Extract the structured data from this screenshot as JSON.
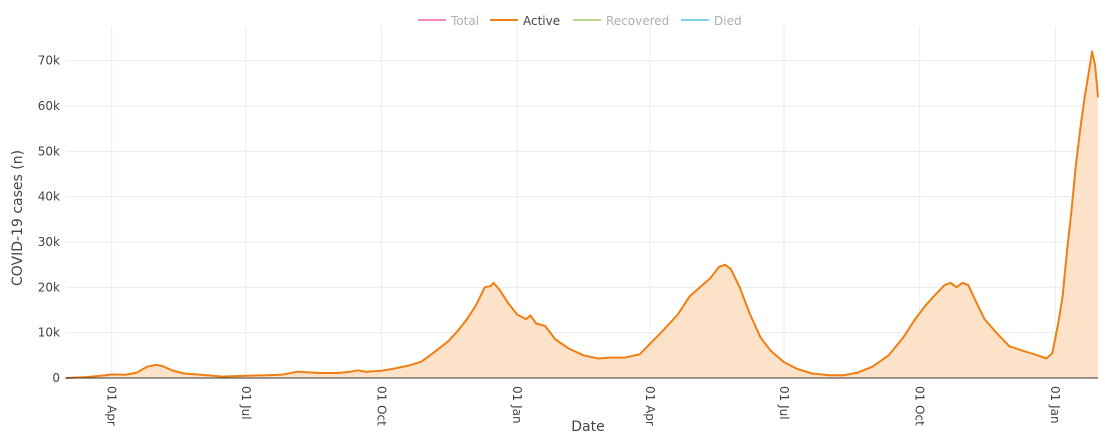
{
  "chart_data": {
    "type": "area",
    "xlabel": "Date",
    "ylabel": "COVID-19 cases (n)",
    "xlim": [
      "2020-03-01",
      "2022-01-30"
    ],
    "ylim": [
      0,
      75000
    ],
    "y_ticks": [
      {
        "value": 0,
        "label": "0"
      },
      {
        "value": 10000,
        "label": "10k"
      },
      {
        "value": 20000,
        "label": "20k"
      },
      {
        "value": 30000,
        "label": "30k"
      },
      {
        "value": 40000,
        "label": "40k"
      },
      {
        "value": 50000,
        "label": "50k"
      },
      {
        "value": 60000,
        "label": "60k"
      },
      {
        "value": 70000,
        "label": "70k"
      }
    ],
    "x_ticks": [
      {
        "date": "2020-04-01",
        "label": "01 Apr"
      },
      {
        "date": "2020-07-01",
        "label": "01 Jul"
      },
      {
        "date": "2020-10-01",
        "label": "01 Oct"
      },
      {
        "date": "2021-01-01",
        "label": "01 Jan"
      },
      {
        "date": "2021-04-01",
        "label": "01 Apr"
      },
      {
        "date": "2021-07-01",
        "label": "01 Jul"
      },
      {
        "date": "2021-10-01",
        "label": "01 Oct"
      },
      {
        "date": "2022-01-01",
        "label": "01 Jan"
      }
    ],
    "grid": true,
    "legend_position": "top-center",
    "legend": [
      {
        "name": "Total",
        "color": "#f08ab8",
        "active": false
      },
      {
        "name": "Active",
        "color": "#f07f13",
        "active": true
      },
      {
        "name": "Recovered",
        "color": "#b8d88a",
        "active": false
      },
      {
        "name": "Died",
        "color": "#7fd3e6",
        "active": false
      }
    ],
    "series": [
      {
        "name": "Active",
        "color": "#f07f13",
        "fill": "#fce2c9",
        "points": [
          [
            "2020-03-01",
            0
          ],
          [
            "2020-03-15",
            200
          ],
          [
            "2020-03-28",
            600
          ],
          [
            "2020-04-01",
            800
          ],
          [
            "2020-04-10",
            700
          ],
          [
            "2020-04-18",
            1200
          ],
          [
            "2020-04-25",
            2500
          ],
          [
            "2020-05-01",
            2900
          ],
          [
            "2020-05-05",
            2700
          ],
          [
            "2020-05-12",
            1700
          ],
          [
            "2020-05-20",
            1000
          ],
          [
            "2020-06-01",
            700
          ],
          [
            "2020-06-15",
            300
          ],
          [
            "2020-07-01",
            500
          ],
          [
            "2020-07-15",
            600
          ],
          [
            "2020-07-25",
            700
          ],
          [
            "2020-08-05",
            1400
          ],
          [
            "2020-08-20",
            1100
          ],
          [
            "2020-09-01",
            1100
          ],
          [
            "2020-09-10",
            1400
          ],
          [
            "2020-09-15",
            1700
          ],
          [
            "2020-09-20",
            1400
          ],
          [
            "2020-10-01",
            1600
          ],
          [
            "2020-10-10",
            2100
          ],
          [
            "2020-10-20",
            2800
          ],
          [
            "2020-10-28",
            3600
          ],
          [
            "2020-11-05",
            5500
          ],
          [
            "2020-11-15",
            8000
          ],
          [
            "2020-11-22",
            10500
          ],
          [
            "2020-11-28",
            13000
          ],
          [
            "2020-12-04",
            16000
          ],
          [
            "2020-12-10",
            20000
          ],
          [
            "2020-12-14",
            20300
          ],
          [
            "2020-12-16",
            21000
          ],
          [
            "2020-12-20",
            19500
          ],
          [
            "2020-12-26",
            16500
          ],
          [
            "2021-01-01",
            14000
          ],
          [
            "2021-01-07",
            13000
          ],
          [
            "2021-01-10",
            13800
          ],
          [
            "2021-01-14",
            12000
          ],
          [
            "2021-01-20",
            11500
          ],
          [
            "2021-01-27",
            8500
          ],
          [
            "2021-02-05",
            6500
          ],
          [
            "2021-02-15",
            5000
          ],
          [
            "2021-02-25",
            4300
          ],
          [
            "2021-03-05",
            4500
          ],
          [
            "2021-03-15",
            4500
          ],
          [
            "2021-03-25",
            5200
          ],
          [
            "2021-04-01",
            7500
          ],
          [
            "2021-04-10",
            10500
          ],
          [
            "2021-04-20",
            14000
          ],
          [
            "2021-04-28",
            18000
          ],
          [
            "2021-05-05",
            20000
          ],
          [
            "2021-05-12",
            22000
          ],
          [
            "2021-05-18",
            24500
          ],
          [
            "2021-05-22",
            25000
          ],
          [
            "2021-05-26",
            24000
          ],
          [
            "2021-06-01",
            20000
          ],
          [
            "2021-06-08",
            14000
          ],
          [
            "2021-06-15",
            9000
          ],
          [
            "2021-06-22",
            6000
          ],
          [
            "2021-07-01",
            3500
          ],
          [
            "2021-07-10",
            2000
          ],
          [
            "2021-07-20",
            1000
          ],
          [
            "2021-08-01",
            600
          ],
          [
            "2021-08-10",
            600
          ],
          [
            "2021-08-20",
            1200
          ],
          [
            "2021-08-30",
            2500
          ],
          [
            "2021-09-10",
            5000
          ],
          [
            "2021-09-20",
            9000
          ],
          [
            "2021-09-28",
            13000
          ],
          [
            "2021-10-05",
            16000
          ],
          [
            "2021-10-12",
            18500
          ],
          [
            "2021-10-18",
            20500
          ],
          [
            "2021-10-22",
            21000
          ],
          [
            "2021-10-26",
            20000
          ],
          [
            "2021-10-30",
            21000
          ],
          [
            "2021-11-03",
            20500
          ],
          [
            "2021-11-08",
            17000
          ],
          [
            "2021-11-14",
            13000
          ],
          [
            "2021-11-22",
            10000
          ],
          [
            "2021-12-01",
            7000
          ],
          [
            "2021-12-10",
            6000
          ],
          [
            "2021-12-20",
            5000
          ],
          [
            "2021-12-26",
            4300
          ],
          [
            "2021-12-30",
            5500
          ],
          [
            "2022-01-03",
            12000
          ],
          [
            "2022-01-06",
            18000
          ],
          [
            "2022-01-09",
            28000
          ],
          [
            "2022-01-12",
            37000
          ],
          [
            "2022-01-15",
            47000
          ],
          [
            "2022-01-18",
            55000
          ],
          [
            "2022-01-21",
            62000
          ],
          [
            "2022-01-24",
            68000
          ],
          [
            "2022-01-26",
            72000
          ],
          [
            "2022-01-28",
            69000
          ],
          [
            "2022-01-30",
            62000
          ]
        ]
      }
    ]
  }
}
